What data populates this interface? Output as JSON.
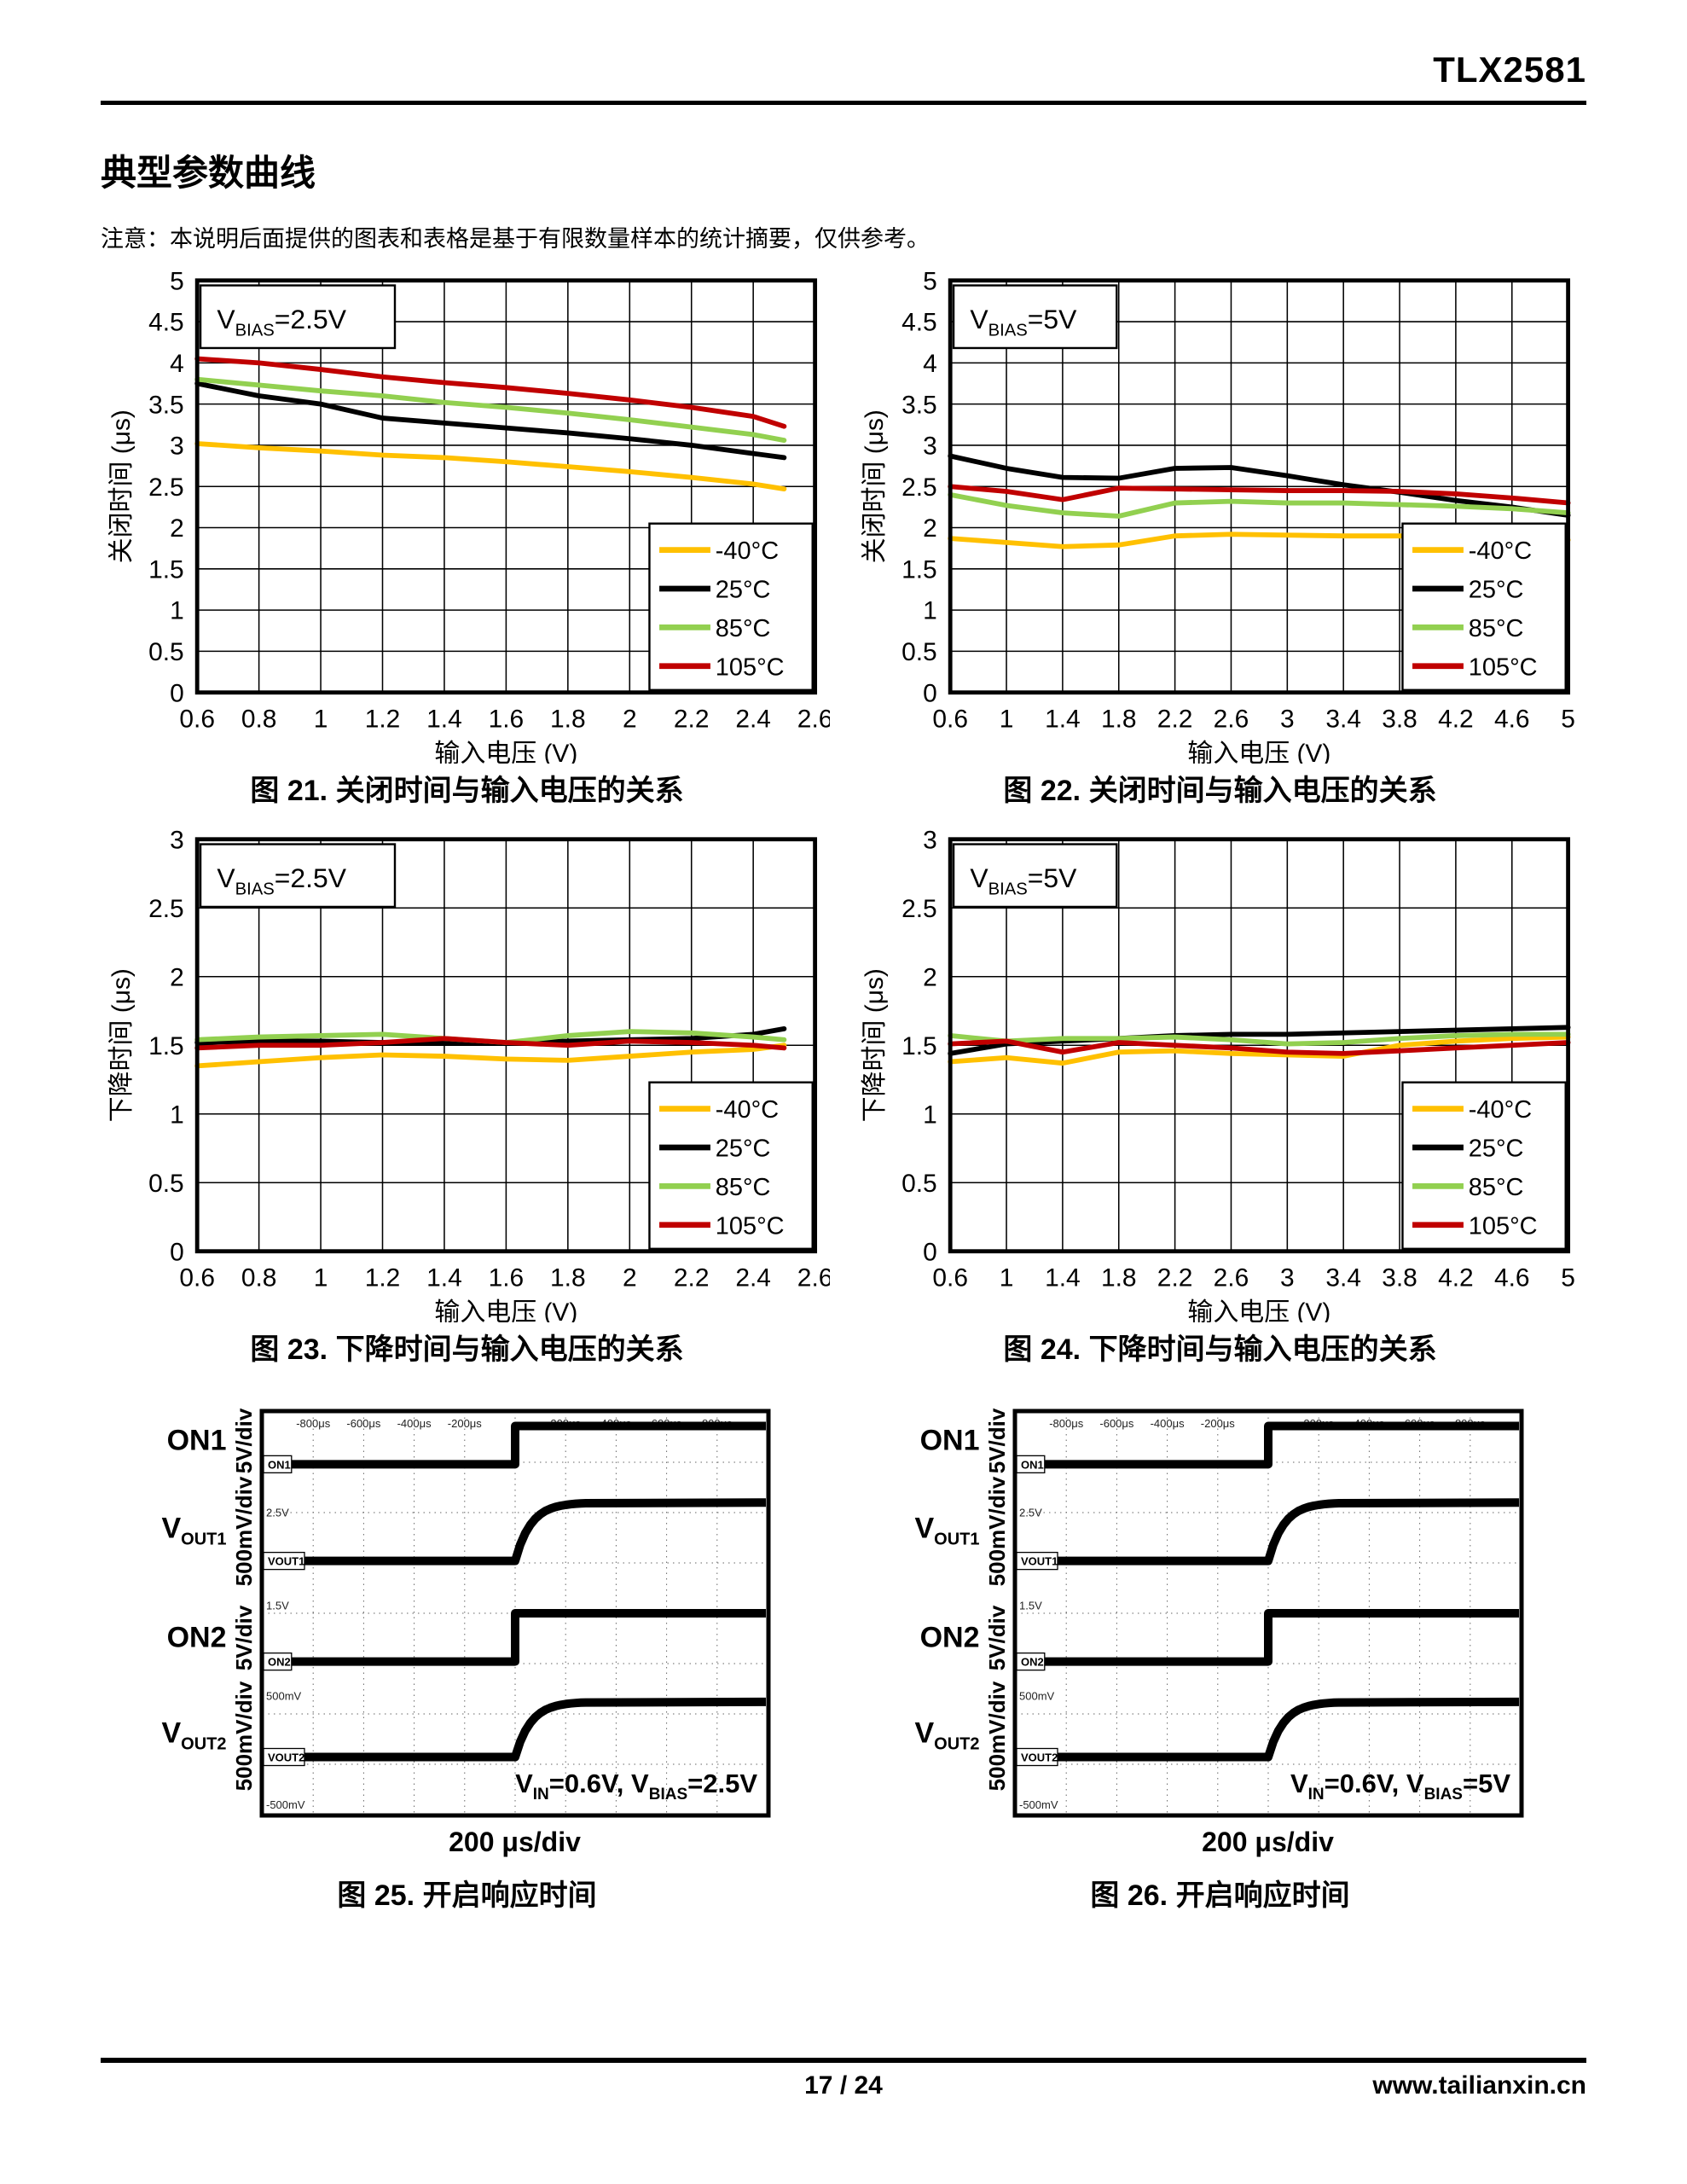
{
  "page": {
    "doc_number": "TLX2581",
    "section_title": "典型参数曲线",
    "note": "注意：本说明后面提供的图表和表格是基于有限数量样本的统计摘要，仅供参考。",
    "footer": {
      "page_num": "17 / 24",
      "website": "www.tailianxin.cn"
    }
  },
  "chart_data": [
    {
      "type": "line",
      "caption": "图 21. 关闭时间与输入电压的关系",
      "xlabel": "输入电压 (V)",
      "ylabel": "关闭时间 (μs)",
      "xlim": [
        0.6,
        2.6
      ],
      "ylim": [
        0,
        5
      ],
      "ystep": 0.5,
      "xticks": [
        0.6,
        0.8,
        1,
        1.2,
        1.4,
        1.6,
        1.8,
        2,
        2.2,
        2.4,
        2.6
      ],
      "grid": true,
      "legend_position": "bottom-right",
      "annotation": [
        {
          "t": "V"
        },
        {
          "t": "BIAS",
          "sub": true
        },
        {
          "t": "=2.5V"
        }
      ],
      "series": [
        {
          "name": "-40°C",
          "color": "#FFC000",
          "x": [
            0.6,
            0.8,
            1.0,
            1.2,
            1.4,
            1.6,
            1.8,
            2.0,
            2.2,
            2.4,
            2.5
          ],
          "y": [
            3.02,
            2.97,
            2.93,
            2.88,
            2.85,
            2.8,
            2.74,
            2.68,
            2.61,
            2.53,
            2.47
          ]
        },
        {
          "name": "25°C",
          "color": "#000000",
          "x": [
            0.6,
            0.8,
            1.0,
            1.2,
            1.4,
            1.6,
            1.8,
            2.0,
            2.2,
            2.4,
            2.5
          ],
          "y": [
            3.75,
            3.6,
            3.5,
            3.33,
            3.27,
            3.21,
            3.15,
            3.08,
            3.0,
            2.9,
            2.85
          ]
        },
        {
          "name": "85°C",
          "color": "#92D050",
          "x": [
            0.6,
            0.8,
            1.0,
            1.2,
            1.4,
            1.6,
            1.8,
            2.0,
            2.2,
            2.4,
            2.5
          ],
          "y": [
            3.8,
            3.73,
            3.66,
            3.6,
            3.52,
            3.46,
            3.39,
            3.31,
            3.22,
            3.13,
            3.06
          ]
        },
        {
          "name": "105°C",
          "color": "#C00000",
          "x": [
            0.6,
            0.8,
            1.0,
            1.2,
            1.4,
            1.6,
            1.8,
            2.0,
            2.2,
            2.4,
            2.5
          ],
          "y": [
            4.05,
            4.0,
            3.92,
            3.83,
            3.76,
            3.7,
            3.63,
            3.55,
            3.46,
            3.35,
            3.23
          ]
        }
      ]
    },
    {
      "type": "line",
      "caption": "图 22. 关闭时间与输入电压的关系",
      "xlabel": "输入电压 (V)",
      "ylabel": "关闭时间 (μs)",
      "xlim": [
        0.6,
        5
      ],
      "ylim": [
        0,
        5
      ],
      "ystep": 0.5,
      "xticks": [
        0.6,
        1,
        1.4,
        1.8,
        2.2,
        2.6,
        3,
        3.4,
        3.8,
        4.2,
        4.6,
        5
      ],
      "grid": true,
      "legend_position": "bottom-right",
      "annotation": [
        {
          "t": "V"
        },
        {
          "t": "BIAS",
          "sub": true
        },
        {
          "t": "=5V"
        }
      ],
      "series": [
        {
          "name": "-40°C",
          "color": "#FFC000",
          "x": [
            0.6,
            1.0,
            1.4,
            1.8,
            2.2,
            2.6,
            3.0,
            3.4,
            3.8,
            4.2,
            4.6,
            5.0
          ],
          "y": [
            1.87,
            1.82,
            1.77,
            1.79,
            1.9,
            1.92,
            1.91,
            1.9,
            1.9,
            1.89,
            1.88,
            1.85
          ]
        },
        {
          "name": "25°C",
          "color": "#000000",
          "x": [
            0.6,
            1.0,
            1.4,
            1.8,
            2.2,
            2.6,
            3.0,
            3.4,
            3.8,
            4.2,
            4.6,
            5.0
          ],
          "y": [
            2.87,
            2.72,
            2.61,
            2.6,
            2.72,
            2.73,
            2.63,
            2.52,
            2.43,
            2.33,
            2.25,
            2.15
          ]
        },
        {
          "name": "85°C",
          "color": "#92D050",
          "x": [
            0.6,
            1.0,
            1.4,
            1.8,
            2.2,
            2.6,
            3.0,
            3.4,
            3.8,
            4.2,
            4.6,
            5.0
          ],
          "y": [
            2.4,
            2.27,
            2.18,
            2.14,
            2.3,
            2.32,
            2.3,
            2.3,
            2.28,
            2.26,
            2.23,
            2.18
          ]
        },
        {
          "name": "105°C",
          "color": "#C00000",
          "x": [
            0.6,
            1.0,
            1.4,
            1.8,
            2.2,
            2.6,
            3.0,
            3.4,
            3.8,
            4.2,
            4.6,
            5.0
          ],
          "y": [
            2.5,
            2.44,
            2.34,
            2.48,
            2.47,
            2.46,
            2.45,
            2.45,
            2.44,
            2.41,
            2.36,
            2.3
          ]
        }
      ]
    },
    {
      "type": "line",
      "caption": "图 23. 下降时间与输入电压的关系",
      "xlabel": "输入电压 (V)",
      "ylabel": "下降时间 (μs)",
      "xlim": [
        0.6,
        2.6
      ],
      "ylim": [
        0,
        3
      ],
      "ystep": 0.5,
      "xticks": [
        0.6,
        0.8,
        1,
        1.2,
        1.4,
        1.6,
        1.8,
        2,
        2.2,
        2.4,
        2.6
      ],
      "grid": true,
      "legend_position": "bottom-right",
      "annotation": [
        {
          "t": "V"
        },
        {
          "t": "BIAS",
          "sub": true
        },
        {
          "t": "=2.5V"
        }
      ],
      "series": [
        {
          "name": "-40°C",
          "color": "#FFC000",
          "x": [
            0.6,
            0.8,
            1.0,
            1.2,
            1.4,
            1.6,
            1.8,
            2.0,
            2.2,
            2.4,
            2.5
          ],
          "y": [
            1.35,
            1.38,
            1.41,
            1.43,
            1.42,
            1.4,
            1.39,
            1.42,
            1.45,
            1.47,
            1.5
          ]
        },
        {
          "name": "25°C",
          "color": "#000000",
          "x": [
            0.6,
            0.8,
            1.0,
            1.2,
            1.4,
            1.6,
            1.8,
            2.0,
            2.2,
            2.4,
            2.5
          ],
          "y": [
            1.52,
            1.53,
            1.53,
            1.52,
            1.52,
            1.52,
            1.53,
            1.54,
            1.55,
            1.58,
            1.62
          ]
        },
        {
          "name": "85°C",
          "color": "#92D050",
          "x": [
            0.6,
            0.8,
            1.0,
            1.2,
            1.4,
            1.6,
            1.8,
            2.0,
            2.2,
            2.4,
            2.5
          ],
          "y": [
            1.54,
            1.56,
            1.57,
            1.58,
            1.55,
            1.52,
            1.57,
            1.6,
            1.59,
            1.56,
            1.54
          ]
        },
        {
          "name": "105°C",
          "color": "#C00000",
          "x": [
            0.6,
            0.8,
            1.0,
            1.2,
            1.4,
            1.6,
            1.8,
            2.0,
            2.2,
            2.4,
            2.5
          ],
          "y": [
            1.48,
            1.5,
            1.5,
            1.52,
            1.55,
            1.52,
            1.5,
            1.53,
            1.52,
            1.5,
            1.48
          ]
        }
      ]
    },
    {
      "type": "line",
      "caption": "图 24. 下降时间与输入电压的关系",
      "xlabel": "输入电压 (V)",
      "ylabel": "下降时间 (μs)",
      "xlim": [
        0.6,
        5
      ],
      "ylim": [
        0,
        3
      ],
      "ystep": 0.5,
      "xticks": [
        0.6,
        1,
        1.4,
        1.8,
        2.2,
        2.6,
        3,
        3.4,
        3.8,
        4.2,
        4.6,
        5
      ],
      "grid": true,
      "legend_position": "bottom-right",
      "annotation": [
        {
          "t": "V"
        },
        {
          "t": "BIAS",
          "sub": true
        },
        {
          "t": "=5V"
        }
      ],
      "series": [
        {
          "name": "-40°C",
          "color": "#FFC000",
          "x": [
            0.6,
            1.0,
            1.4,
            1.8,
            2.2,
            2.6,
            3.0,
            3.4,
            3.8,
            4.2,
            4.6,
            5.0
          ],
          "y": [
            1.38,
            1.41,
            1.37,
            1.45,
            1.46,
            1.44,
            1.43,
            1.42,
            1.5,
            1.53,
            1.55,
            1.56
          ]
        },
        {
          "name": "25°C",
          "color": "#000000",
          "x": [
            0.6,
            1.0,
            1.4,
            1.8,
            2.2,
            2.6,
            3.0,
            3.4,
            3.8,
            4.2,
            4.6,
            5.0
          ],
          "y": [
            1.44,
            1.51,
            1.53,
            1.55,
            1.57,
            1.58,
            1.58,
            1.59,
            1.6,
            1.61,
            1.62,
            1.63
          ]
        },
        {
          "name": "85°C",
          "color": "#92D050",
          "x": [
            0.6,
            1.0,
            1.4,
            1.8,
            2.2,
            2.6,
            3.0,
            3.4,
            3.8,
            4.2,
            4.6,
            5.0
          ],
          "y": [
            1.57,
            1.53,
            1.55,
            1.55,
            1.56,
            1.54,
            1.51,
            1.52,
            1.55,
            1.57,
            1.58,
            1.58
          ]
        },
        {
          "name": "105°C",
          "color": "#C00000",
          "x": [
            0.6,
            1.0,
            1.4,
            1.8,
            2.2,
            2.6,
            3.0,
            3.4,
            3.8,
            4.2,
            4.6,
            5.0
          ],
          "y": [
            1.51,
            1.53,
            1.45,
            1.52,
            1.5,
            1.48,
            1.45,
            1.44,
            1.46,
            1.48,
            1.5,
            1.52
          ]
        }
      ]
    }
  ],
  "scopes": [
    {
      "caption": "图 25. 开启响应时间",
      "timebase": "200 μs/div",
      "left_labels": [
        {
          "name": [
            {
              "t": "ON1"
            }
          ],
          "scale": "5V/div",
          "fy": 0.08
        },
        {
          "name": [
            {
              "t": "V"
            },
            {
              "t": "OUT1",
              "sub": true
            }
          ],
          "scale": "500mV/div",
          "fy": 0.3
        },
        {
          "name": [
            {
              "t": "ON2"
            }
          ],
          "scale": "5V/div",
          "fy": 0.56
        },
        {
          "name": [
            {
              "t": "V"
            },
            {
              "t": "OUT2",
              "sub": true
            }
          ],
          "scale": "500mV/div",
          "fy": 0.8
        }
      ],
      "tags": [
        "ON1",
        "VOUT1",
        "ON2",
        "VOUT2"
      ],
      "top_labels_left": [
        "-800μs",
        "-600μs",
        "-400μs",
        "-200μs"
      ],
      "top_labels_right": [
        "200μs",
        "400μs",
        "600μs",
        "800μs"
      ],
      "side_labels": [
        {
          "t": "2.5V",
          "fy": 0.26
        },
        {
          "t": "1.5V",
          "fy": 0.49
        },
        {
          "t": "500mV",
          "fy": 0.715
        },
        {
          "t": "-500mV",
          "fy": 0.985
        }
      ],
      "channels": [
        {
          "type": "step",
          "low": 0.13,
          "high": 0.035
        },
        {
          "type": "rise",
          "low": 0.37,
          "high": 0.225
        },
        {
          "type": "step",
          "low": 0.62,
          "high": 0.5
        },
        {
          "type": "rise",
          "low": 0.857,
          "high": 0.72
        }
      ],
      "step_x": 0.5,
      "annotation": [
        {
          "t": "V"
        },
        {
          "t": "IN",
          "sub": true
        },
        {
          "t": "=0.6V, V"
        },
        {
          "t": "BIAS",
          "sub": true
        },
        {
          "t": "=2.5V"
        }
      ]
    },
    {
      "caption": "图 26. 开启响应时间",
      "timebase": "200 μs/div",
      "left_labels": [
        {
          "name": [
            {
              "t": "ON1"
            }
          ],
          "scale": "5V/div",
          "fy": 0.08
        },
        {
          "name": [
            {
              "t": "V"
            },
            {
              "t": "OUT1",
              "sub": true
            }
          ],
          "scale": "500mV/div",
          "fy": 0.3
        },
        {
          "name": [
            {
              "t": "ON2"
            }
          ],
          "scale": "5V/div",
          "fy": 0.56
        },
        {
          "name": [
            {
              "t": "V"
            },
            {
              "t": "OUT2",
              "sub": true
            }
          ],
          "scale": "500mV/div",
          "fy": 0.8
        }
      ],
      "tags": [
        "ON1",
        "VOUT1",
        "ON2",
        "VOUT2"
      ],
      "top_labels_left": [
        "-800μs",
        "-600μs",
        "-400μs",
        "-200μs"
      ],
      "top_labels_right": [
        "200μs",
        "400μs",
        "600μs",
        "800μs"
      ],
      "side_labels": [
        {
          "t": "2.5V",
          "fy": 0.26
        },
        {
          "t": "1.5V",
          "fy": 0.49
        },
        {
          "t": "500mV",
          "fy": 0.715
        },
        {
          "t": "-500mV",
          "fy": 0.985
        }
      ],
      "channels": [
        {
          "type": "step",
          "low": 0.13,
          "high": 0.035
        },
        {
          "type": "rise",
          "low": 0.37,
          "high": 0.225
        },
        {
          "type": "step",
          "low": 0.62,
          "high": 0.5
        },
        {
          "type": "rise",
          "low": 0.857,
          "high": 0.72
        }
      ],
      "step_x": 0.5,
      "annotation": [
        {
          "t": "V"
        },
        {
          "t": "IN",
          "sub": true
        },
        {
          "t": "=0.6V, V"
        },
        {
          "t": "BIAS",
          "sub": true
        },
        {
          "t": "=5V"
        }
      ]
    }
  ]
}
